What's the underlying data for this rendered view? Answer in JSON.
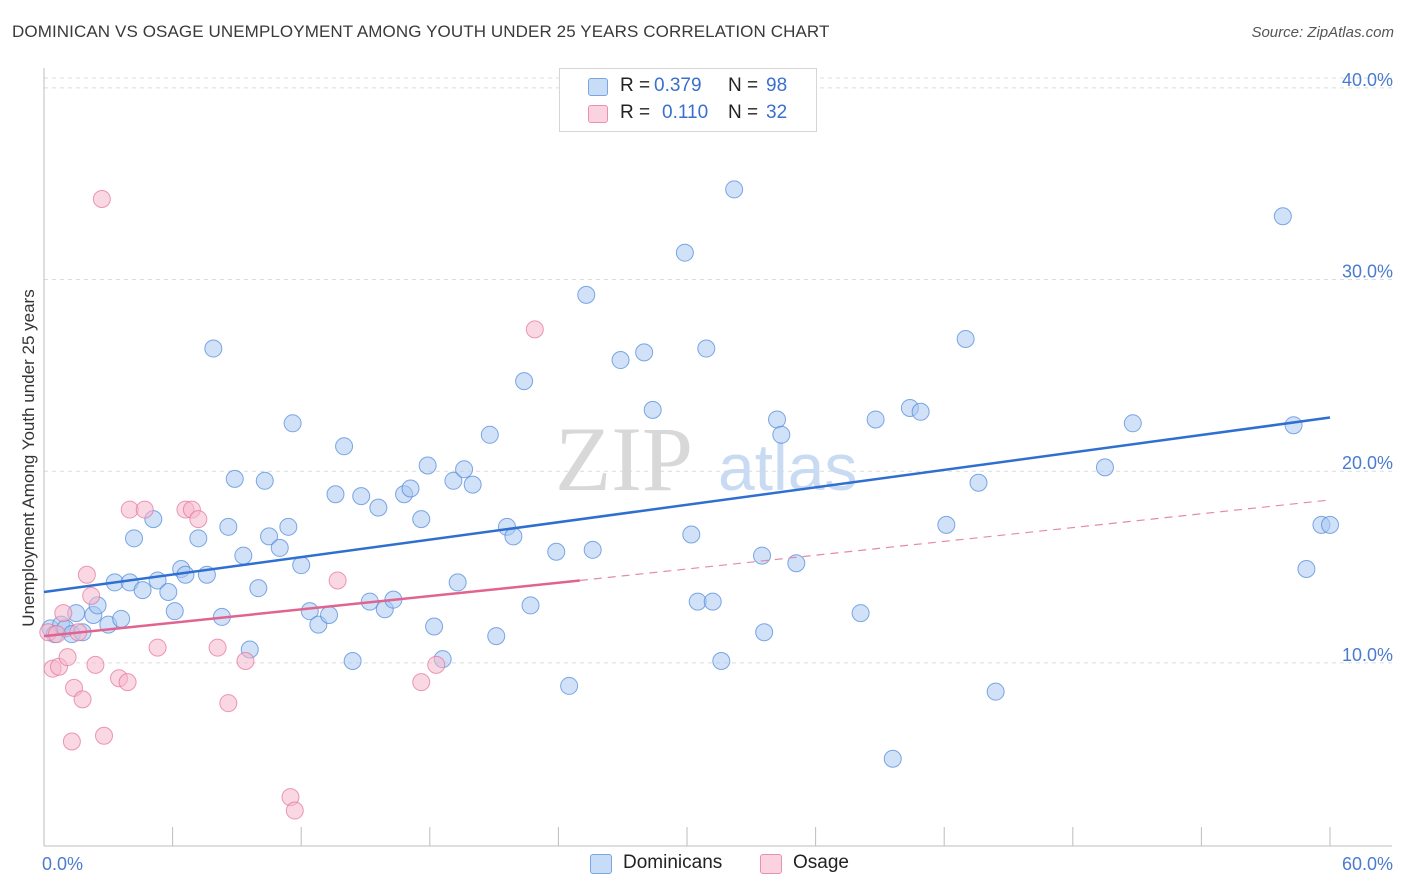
{
  "title": "DOMINICAN VS OSAGE UNEMPLOYMENT AMONG YOUTH UNDER 25 YEARS CORRELATION CHART",
  "source": "Source: ZipAtlas.com",
  "watermark": {
    "zip": "ZIP",
    "atlas": "atlas"
  },
  "legend": {
    "rows": [
      {
        "r_label": "R = ",
        "r_value": "0.379",
        "n_label": "N = ",
        "n_value": "98",
        "color": "#aac8f2"
      },
      {
        "r_label": "R = ",
        "r_value": "0.110",
        "n_label": "N = ",
        "n_value": "32",
        "color": "#f6b8cc"
      }
    ]
  },
  "bottom_legend": [
    {
      "label": "Dominicans",
      "color": "#aac8f2"
    },
    {
      "label": "Osage",
      "color": "#f6b8cc"
    }
  ],
  "chart_data": {
    "type": "scatter",
    "xlabel": "",
    "ylabel": "Unemployment Among Youth under 25 years",
    "xlim": [
      0,
      60
    ],
    "ylim": [
      0,
      40
    ],
    "x_tick_labels": [
      "0.0%",
      "60.0%"
    ],
    "y_ticks": [
      10,
      20,
      30,
      40
    ],
    "y_tick_labels": [
      "10.0%",
      "20.0%",
      "30.0%",
      "40.0%"
    ],
    "grid": true,
    "series": [
      {
        "name": "Dominicans",
        "color": "#4a86d8",
        "fill": "#aac8f2",
        "trend": {
          "x": [
            0,
            60
          ],
          "y": [
            13.7,
            22.8
          ],
          "style": "solid"
        },
        "points": [
          [
            0.3,
            11.8
          ],
          [
            0.5,
            11.5
          ],
          [
            0.8,
            12.0
          ],
          [
            1.0,
            11.8
          ],
          [
            1.3,
            11.5
          ],
          [
            1.5,
            12.6
          ],
          [
            1.8,
            11.6
          ],
          [
            2.3,
            12.5
          ],
          [
            2.5,
            13.0
          ],
          [
            3.0,
            12.0
          ],
          [
            3.3,
            14.2
          ],
          [
            3.6,
            12.3
          ],
          [
            4.0,
            14.2
          ],
          [
            4.2,
            16.5
          ],
          [
            4.6,
            13.8
          ],
          [
            5.1,
            17.5
          ],
          [
            5.3,
            14.3
          ],
          [
            5.8,
            13.7
          ],
          [
            6.1,
            12.7
          ],
          [
            6.4,
            14.9
          ],
          [
            6.6,
            14.6
          ],
          [
            7.2,
            16.5
          ],
          [
            7.6,
            14.6
          ],
          [
            7.9,
            26.4
          ],
          [
            8.3,
            12.4
          ],
          [
            8.6,
            17.1
          ],
          [
            8.9,
            19.6
          ],
          [
            9.3,
            15.6
          ],
          [
            9.6,
            10.7
          ],
          [
            10.0,
            13.9
          ],
          [
            10.3,
            19.5
          ],
          [
            10.5,
            16.6
          ],
          [
            11.0,
            16.0
          ],
          [
            11.4,
            17.1
          ],
          [
            11.6,
            22.5
          ],
          [
            12.0,
            15.1
          ],
          [
            12.4,
            12.7
          ],
          [
            12.8,
            12.0
          ],
          [
            13.3,
            12.5
          ],
          [
            13.6,
            18.8
          ],
          [
            14.0,
            21.3
          ],
          [
            14.4,
            10.1
          ],
          [
            14.8,
            18.7
          ],
          [
            15.2,
            13.2
          ],
          [
            15.6,
            18.1
          ],
          [
            15.9,
            12.8
          ],
          [
            16.3,
            13.3
          ],
          [
            16.8,
            18.8
          ],
          [
            17.1,
            19.1
          ],
          [
            17.6,
            17.5
          ],
          [
            17.9,
            20.3
          ],
          [
            18.2,
            11.9
          ],
          [
            18.6,
            10.2
          ],
          [
            19.1,
            19.5
          ],
          [
            19.3,
            14.2
          ],
          [
            19.6,
            20.1
          ],
          [
            20.0,
            19.3
          ],
          [
            20.8,
            21.9
          ],
          [
            21.1,
            11.4
          ],
          [
            21.6,
            17.1
          ],
          [
            21.9,
            16.6
          ],
          [
            22.4,
            24.7
          ],
          [
            22.7,
            13.0
          ],
          [
            23.9,
            15.8
          ],
          [
            24.5,
            8.8
          ],
          [
            25.3,
            29.2
          ],
          [
            25.6,
            15.9
          ],
          [
            26.9,
            25.8
          ],
          [
            28.0,
            26.2
          ],
          [
            28.4,
            23.2
          ],
          [
            29.9,
            31.4
          ],
          [
            30.2,
            16.7
          ],
          [
            30.5,
            13.2
          ],
          [
            30.9,
            26.4
          ],
          [
            31.2,
            13.2
          ],
          [
            31.6,
            10.1
          ],
          [
            32.2,
            34.7
          ],
          [
            33.5,
            15.6
          ],
          [
            33.6,
            11.6
          ],
          [
            34.2,
            22.7
          ],
          [
            34.4,
            21.9
          ],
          [
            35.1,
            15.2
          ],
          [
            38.1,
            12.6
          ],
          [
            38.8,
            22.7
          ],
          [
            39.6,
            5.0
          ],
          [
            40.4,
            23.3
          ],
          [
            40.9,
            23.1
          ],
          [
            42.1,
            17.2
          ],
          [
            43.0,
            26.9
          ],
          [
            43.6,
            19.4
          ],
          [
            44.4,
            8.5
          ],
          [
            49.5,
            20.2
          ],
          [
            50.8,
            22.5
          ],
          [
            57.8,
            33.3
          ],
          [
            58.3,
            22.4
          ],
          [
            58.9,
            14.9
          ],
          [
            59.6,
            17.2
          ],
          [
            60.0,
            17.2
          ]
        ]
      },
      {
        "name": "Osage",
        "color": "#e47099",
        "fill": "#f6b8cc",
        "trend": {
          "x": [
            0,
            25.0,
            60
          ],
          "y": [
            11.4,
            14.3,
            18.5
          ],
          "style": "solid-then-dashed"
        },
        "points": [
          [
            0.2,
            11.6
          ],
          [
            0.4,
            9.7
          ],
          [
            0.6,
            11.5
          ],
          [
            0.7,
            9.8
          ],
          [
            0.9,
            12.6
          ],
          [
            1.1,
            10.3
          ],
          [
            1.3,
            5.9
          ],
          [
            1.4,
            8.7
          ],
          [
            1.6,
            11.6
          ],
          [
            1.8,
            8.1
          ],
          [
            2.0,
            14.6
          ],
          [
            2.2,
            13.5
          ],
          [
            2.4,
            9.9
          ],
          [
            2.7,
            34.2
          ],
          [
            2.8,
            6.2
          ],
          [
            3.5,
            9.2
          ],
          [
            3.9,
            9.0
          ],
          [
            4.0,
            18.0
          ],
          [
            4.7,
            18.0
          ],
          [
            5.3,
            10.8
          ],
          [
            6.6,
            18.0
          ],
          [
            6.9,
            18.0
          ],
          [
            7.2,
            17.5
          ],
          [
            8.1,
            10.8
          ],
          [
            8.6,
            7.9
          ],
          [
            9.4,
            10.1
          ],
          [
            11.5,
            3.0
          ],
          [
            11.7,
            2.3
          ],
          [
            13.7,
            14.3
          ],
          [
            17.6,
            9.0
          ],
          [
            18.3,
            9.9
          ],
          [
            22.9,
            27.4
          ]
        ]
      }
    ]
  }
}
